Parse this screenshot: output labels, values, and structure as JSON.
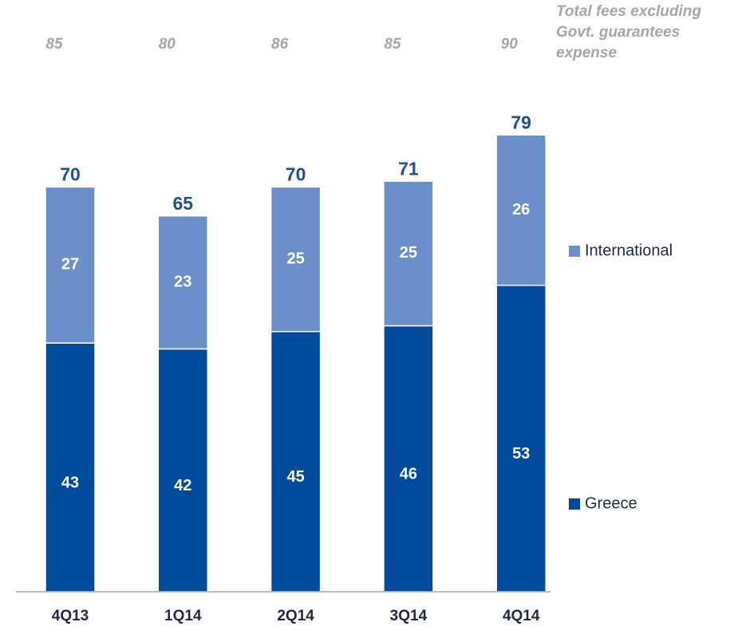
{
  "chart_data": {
    "type": "stacked_bar",
    "categories": [
      "4Q13",
      "1Q14",
      "2Q14",
      "3Q14",
      "4Q14"
    ],
    "series": [
      {
        "name": "Greece",
        "color": "#004b9b",
        "values": [
          43,
          42,
          45,
          46,
          53
        ]
      },
      {
        "name": "International",
        "color": "#6b8fc8",
        "values": [
          27,
          23,
          25,
          25,
          26
        ]
      }
    ],
    "totals": [
      70,
      65,
      70,
      71,
      79
    ],
    "total_fees_label": "Total fees excluding Govt. guarantees expense",
    "total_fees": [
      85,
      80,
      86,
      85,
      90
    ]
  }
}
